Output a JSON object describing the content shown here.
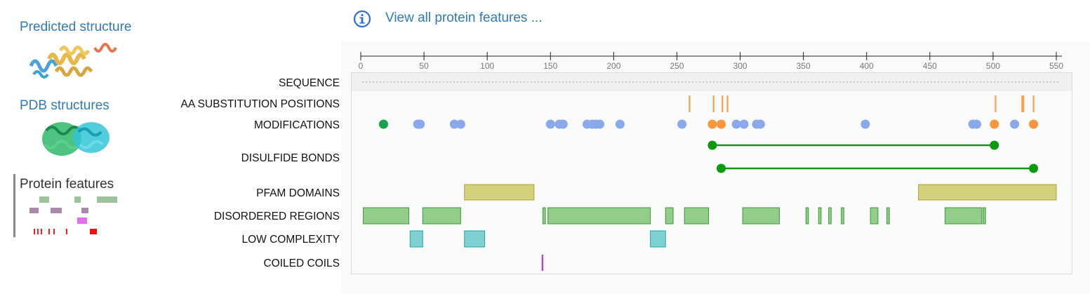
{
  "sidebar": {
    "predicted_label": "Predicted structure",
    "pdb_label": "PDB structures",
    "features_label": "Protein features"
  },
  "header": {
    "view_all_label": "View all protein features ..."
  },
  "axis": {
    "min": 0,
    "max": 550,
    "ticks": [
      "0",
      "50",
      "100",
      "150",
      "200",
      "250",
      "300",
      "350",
      "400",
      "450",
      "500",
      "550"
    ]
  },
  "tracks": {
    "sequence_label": "SEQUENCE",
    "aa_label": "AA SUBSTITUTION POSITIONS",
    "mod_label": "MODIFICATIONS",
    "disulfide_label": "DISULFIDE BONDS",
    "pfam_label": "PFAM DOMAINS",
    "disordered_label": "DISORDERED REGIONS",
    "lowcomp_label": "LOW COMPLEXITY",
    "coiled_label": "COILED COILS"
  },
  "features": {
    "aa_substitutions": [
      260,
      279,
      286,
      290,
      502,
      523,
      524,
      532
    ],
    "modifications": [
      {
        "pos": 18,
        "kind": "green"
      },
      {
        "pos": 45,
        "kind": "blue"
      },
      {
        "pos": 47,
        "kind": "blue"
      },
      {
        "pos": 74,
        "kind": "blue"
      },
      {
        "pos": 79,
        "kind": "blue"
      },
      {
        "pos": 150,
        "kind": "blue"
      },
      {
        "pos": 157,
        "kind": "blue"
      },
      {
        "pos": 160,
        "kind": "blue"
      },
      {
        "pos": 179,
        "kind": "blue"
      },
      {
        "pos": 183,
        "kind": "blue"
      },
      {
        "pos": 186,
        "kind": "blue"
      },
      {
        "pos": 189,
        "kind": "blue"
      },
      {
        "pos": 205,
        "kind": "blue"
      },
      {
        "pos": 254,
        "kind": "blue"
      },
      {
        "pos": 278,
        "kind": "orange"
      },
      {
        "pos": 285,
        "kind": "orange"
      },
      {
        "pos": 297,
        "kind": "blue"
      },
      {
        "pos": 303,
        "kind": "blue"
      },
      {
        "pos": 313,
        "kind": "blue"
      },
      {
        "pos": 316,
        "kind": "blue"
      },
      {
        "pos": 399,
        "kind": "blue"
      },
      {
        "pos": 484,
        "kind": "blue"
      },
      {
        "pos": 487,
        "kind": "blue"
      },
      {
        "pos": 501,
        "kind": "orange"
      },
      {
        "pos": 517,
        "kind": "blue"
      },
      {
        "pos": 532,
        "kind": "orange"
      }
    ],
    "disulfide_bonds": [
      [
        278,
        501
      ],
      [
        285,
        532
      ]
    ],
    "pfam_domains": [
      [
        82,
        137
      ],
      [
        441,
        550
      ]
    ],
    "disordered_regions": [
      [
        2,
        38
      ],
      [
        49,
        79
      ],
      [
        144,
        146
      ],
      [
        148,
        229
      ],
      [
        241,
        247
      ],
      [
        256,
        275
      ],
      [
        302,
        331
      ],
      [
        352,
        354
      ],
      [
        362,
        364
      ],
      [
        370,
        372
      ],
      [
        380,
        382
      ],
      [
        403,
        409
      ],
      [
        416,
        418
      ],
      [
        462,
        491
      ],
      [
        492,
        494
      ]
    ],
    "low_complexity": [
      [
        39,
        49
      ],
      [
        82,
        98
      ],
      [
        229,
        241
      ]
    ],
    "coiled_coils": [
      [
        143,
        144
      ]
    ]
  },
  "colors": {
    "link": "#2f7ab8",
    "aa_substitution": "#f5a04a",
    "mod_green": "#16a34a",
    "mod_blue": "#8aa9ea",
    "mod_orange": "#f7963c",
    "disulfide": "#0a9a0a",
    "pfam_fill": "#d4d17c",
    "pfam_stroke": "#a8a43a",
    "disordered_fill": "#93cd8a",
    "disordered_stroke": "#3a9a3a",
    "lowcomp_fill": "#7fd1d1",
    "lowcomp_stroke": "#2aa5a5",
    "coiled": "#b04bb8"
  },
  "icons": {
    "info": "info-circle-icon"
  }
}
